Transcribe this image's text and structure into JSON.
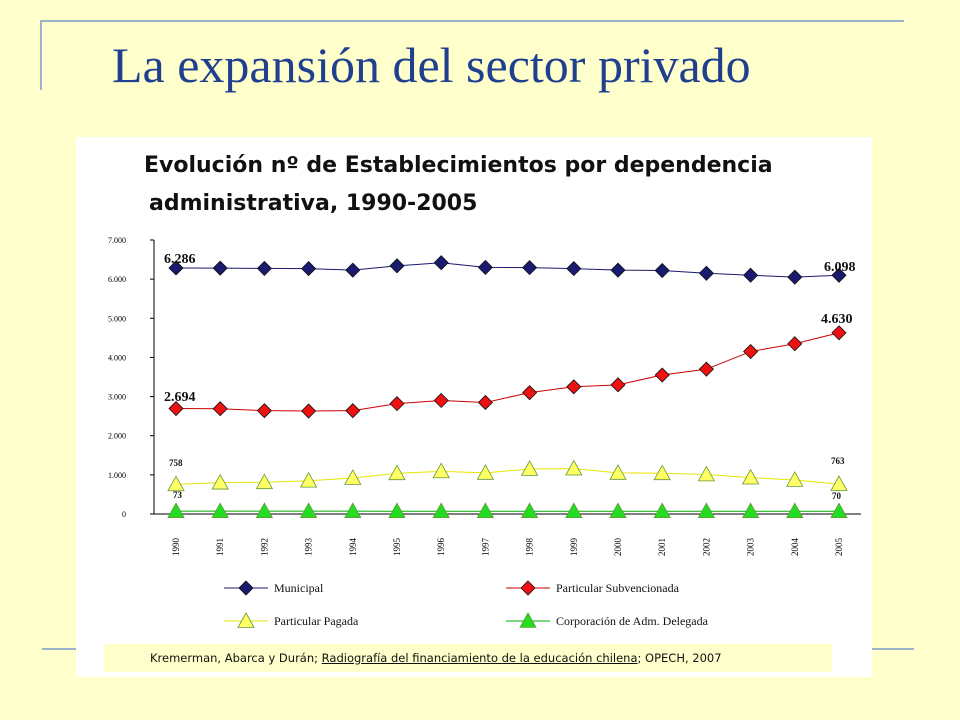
{
  "slide": {
    "title": "La expansión del sector privado"
  },
  "source": {
    "authors": "Kremerman, Abarca y Durán; ",
    "work": "Radiografía del financiamiento de la educación chilena",
    "publisher": "; OPECH, 2007"
  },
  "chart_data": {
    "type": "line",
    "title_line1": "Evolución nº de Establecimientos por dependencia",
    "title_line2": "administrativa, 1990-2005",
    "categories": [
      "1990",
      "1991",
      "1992",
      "1993",
      "1994",
      "1995",
      "1996",
      "1997",
      "1998",
      "1999",
      "2000",
      "2001",
      "2002",
      "2003",
      "2004",
      "2005"
    ],
    "ylim": [
      0,
      7000
    ],
    "yticks": [
      {
        "value": 0,
        "label": "0"
      },
      {
        "value": 1000,
        "label": "1.000"
      },
      {
        "value": 2000,
        "label": "2.000"
      },
      {
        "value": 3000,
        "label": "3.000"
      },
      {
        "value": 4000,
        "label": "4.000"
      },
      {
        "value": 5000,
        "label": "5.000"
      },
      {
        "value": 6000,
        "label": "6.000"
      },
      {
        "value": 7000,
        "label": "7.000"
      }
    ],
    "legend_position": "bottom",
    "series": [
      {
        "name": "Municipal",
        "marker": "diamond",
        "color": "#1a1a6e",
        "line_color": "#1a1a6e",
        "values": [
          6286,
          6280,
          6275,
          6270,
          6230,
          6340,
          6420,
          6300,
          6295,
          6270,
          6230,
          6220,
          6150,
          6100,
          6050,
          6098
        ],
        "labels": {
          "first": "6.286",
          "last": "6.098"
        }
      },
      {
        "name": "Particular Subvencionada",
        "marker": "diamond",
        "color": "#ee1111",
        "line_color": "#cc0000",
        "values": [
          2694,
          2690,
          2640,
          2630,
          2640,
          2820,
          2900,
          2850,
          3100,
          3250,
          3300,
          3550,
          3700,
          4150,
          4350,
          4630
        ],
        "labels": {
          "first": "2.694",
          "last": "4.630"
        }
      },
      {
        "name": "Particular Pagada",
        "marker": "triangle",
        "color": "#ffff66",
        "line_color": "#e6e600",
        "values": [
          758,
          800,
          810,
          850,
          920,
          1040,
          1090,
          1050,
          1150,
          1160,
          1050,
          1040,
          1010,
          930,
          870,
          763
        ],
        "labels": {
          "first": "758",
          "last": "763"
        }
      },
      {
        "name": "Corporación de Adm. Delegada",
        "marker": "triangle",
        "color": "#22dd22",
        "line_color": "#00aa00",
        "values": [
          73,
          73,
          72,
          72,
          72,
          71,
          71,
          71,
          71,
          71,
          70,
          70,
          70,
          70,
          70,
          70
        ],
        "labels": {
          "first": "73",
          "last": "70"
        }
      }
    ]
  }
}
